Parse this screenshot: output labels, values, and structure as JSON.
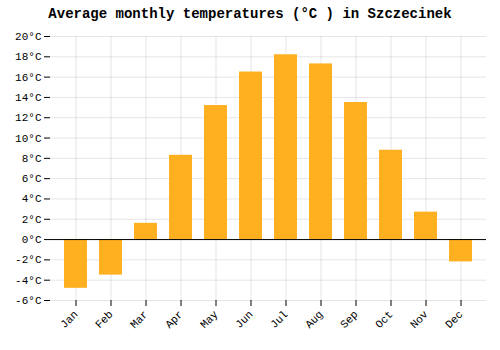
{
  "chart_data": {
    "type": "bar",
    "title": "Average monthly temperatures (°C ) in Szczecinek",
    "categories": [
      "Jan",
      "Feb",
      "Mar",
      "Apr",
      "May",
      "Jun",
      "Jul",
      "Aug",
      "Sep",
      "Oct",
      "Nov",
      "Dec"
    ],
    "values": [
      -4.8,
      -3.5,
      1.6,
      8.3,
      13.2,
      16.5,
      18.2,
      17.3,
      13.5,
      8.8,
      2.7,
      -2.2
    ],
    "color": "#FFB020",
    "ylim": [
      -6,
      20
    ],
    "yticks": [
      {
        "value": -6,
        "label": "-6°C"
      },
      {
        "value": -4,
        "label": "-4°C"
      },
      {
        "value": -2,
        "label": "-2°C"
      },
      {
        "value": 0,
        "label": "0°C"
      },
      {
        "value": 2,
        "label": "2°C"
      },
      {
        "value": 4,
        "label": "4°C"
      },
      {
        "value": 6,
        "label": "6°C"
      },
      {
        "value": 8,
        "label": "8°C"
      },
      {
        "value": 10,
        "label": "10°C"
      },
      {
        "value": 12,
        "label": "12°C"
      },
      {
        "value": 14,
        "label": "14°C"
      },
      {
        "value": 16,
        "label": "16°C"
      },
      {
        "value": 18,
        "label": "18°C"
      },
      {
        "value": 20,
        "label": "20°C"
      }
    ],
    "grid": true
  }
}
